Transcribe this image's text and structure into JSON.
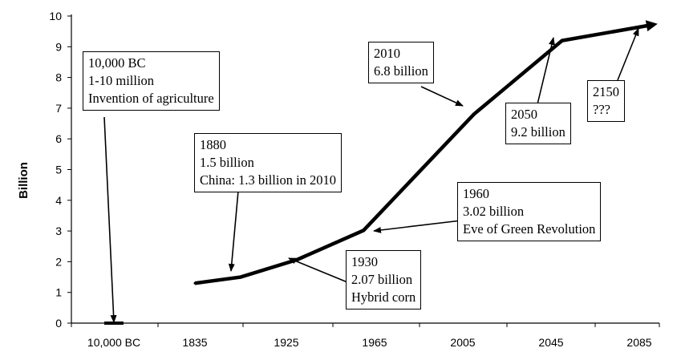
{
  "chart_data": {
    "type": "line",
    "title": "",
    "xlabel": "",
    "ylabel": "Billion",
    "ylim": [
      0,
      10
    ],
    "yticks": [
      0,
      1,
      2,
      3,
      4,
      5,
      6,
      7,
      8,
      9,
      10
    ],
    "xtick_labels": [
      "10,000 BC",
      "1835",
      "1925",
      "1965",
      "2005",
      "2045",
      "2085"
    ],
    "grid": false,
    "series": [
      {
        "x": [
          1835,
          1880,
          1930,
          1960,
          2010,
          2050,
          2150
        ],
        "y": [
          1.3,
          1.5,
          2.07,
          3.02,
          6.8,
          9.2,
          9.7
        ]
      }
    ],
    "early_point": {
      "x": "10,000 BC",
      "y": 0
    },
    "annotations": [
      {
        "id": "bc",
        "lines": [
          "10,000 BC",
          "1-10 million",
          "Invention of agriculture"
        ]
      },
      {
        "id": "1880",
        "lines": [
          "1880",
          "1.5 billion",
          "China: 1.3 billion in 2010"
        ]
      },
      {
        "id": "1930",
        "lines": [
          "1930",
          "2.07 billion",
          "Hybrid corn"
        ]
      },
      {
        "id": "1960",
        "lines": [
          "1960",
          "3.02 billion",
          "Eve of Green Revolution"
        ]
      },
      {
        "id": "2010",
        "lines": [
          "2010",
          "6.8 billion"
        ]
      },
      {
        "id": "2050",
        "lines": [
          "2050",
          "9.2 billion"
        ]
      },
      {
        "id": "2150",
        "lines": [
          "2150",
          "???"
        ]
      }
    ]
  }
}
